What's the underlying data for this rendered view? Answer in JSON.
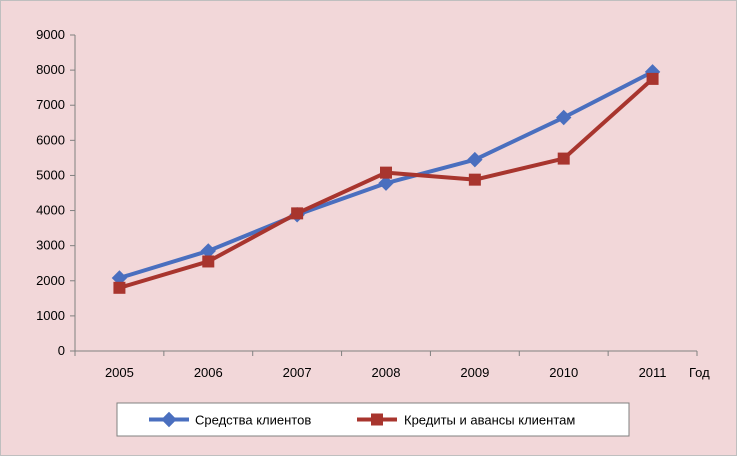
{
  "chart_data": {
    "type": "line",
    "x": [
      "2005",
      "2006",
      "2007",
      "2008",
      "2009",
      "2010",
      "2011"
    ],
    "xlabel": "Год",
    "ylabel": "",
    "title": "",
    "ylim": [
      0,
      9000
    ],
    "yticks": [
      0,
      1000,
      2000,
      3000,
      4000,
      5000,
      6000,
      7000,
      8000,
      9000
    ],
    "grid": false,
    "legend_position": "bottom",
    "series": [
      {
        "name": "Средства клиентов",
        "color": "#4a6fbf",
        "marker": "diamond",
        "values": [
          2080,
          2850,
          3880,
          4780,
          5450,
          6650,
          7950
        ]
      },
      {
        "name": "Кредиты и авансы клиентам",
        "color": "#a8352e",
        "marker": "square",
        "values": [
          1800,
          2550,
          3920,
          5080,
          4880,
          5480,
          7750
        ]
      }
    ]
  }
}
